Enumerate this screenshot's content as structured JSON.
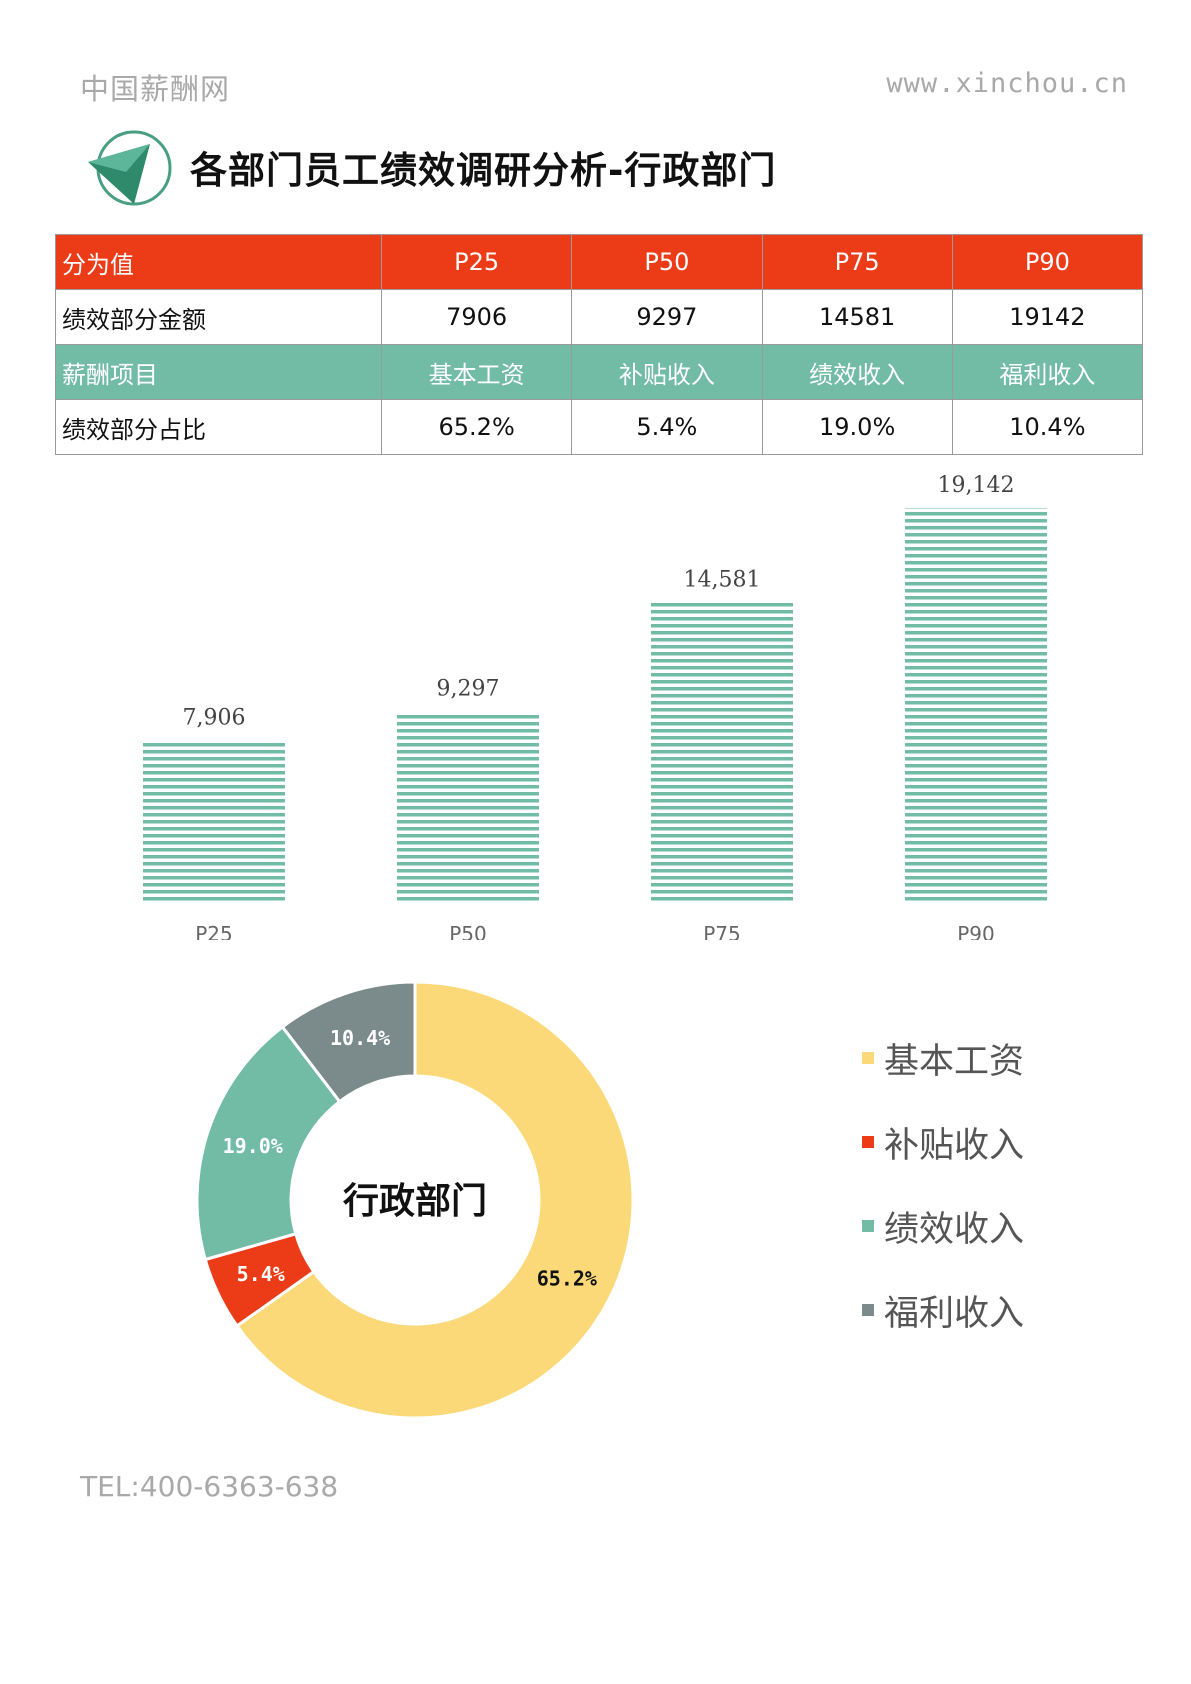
{
  "header": {
    "brand": "中国薪酬网",
    "site": "www.xinchou.cn",
    "title": "各部门员工绩效调研分析-行政部门"
  },
  "table": {
    "rows": [
      {
        "style": "red",
        "cells": [
          "分为值",
          "P25",
          "P50",
          "P75",
          "P90"
        ]
      },
      {
        "style": "plain",
        "cells": [
          "绩效部分金额",
          "7906",
          "9297",
          "14581",
          "19142"
        ]
      },
      {
        "style": "green",
        "cells": [
          "薪酬项目",
          "基本工资",
          "补贴收入",
          "绩效收入",
          "福利收入"
        ]
      },
      {
        "style": "plain",
        "cells": [
          "绩效部分占比",
          "65.2%",
          "5.4%",
          "19.0%",
          "10.4%"
        ]
      }
    ]
  },
  "chart_data": [
    {
      "type": "bar",
      "categories": [
        "P25",
        "P50",
        "P75",
        "P90"
      ],
      "values": [
        7906,
        9297,
        14581,
        19142
      ],
      "data_labels": [
        "7,906",
        "9,297",
        "14,581",
        "19,142"
      ],
      "color": "#72bba4",
      "fill_pattern": "horizontal-stripes",
      "title": "",
      "xlabel": "",
      "ylabel": "",
      "ylim": [
        0,
        19142
      ],
      "grid": false
    },
    {
      "type": "pie",
      "variant": "donut",
      "center_label": "行政部门",
      "categories": [
        "基本工资",
        "补贴收入",
        "绩效收入",
        "福利收入"
      ],
      "values": [
        65.2,
        5.4,
        19.0,
        10.4
      ],
      "data_labels": [
        "65.2%",
        "5.4%",
        "19.0%",
        "10.4%"
      ],
      "colors": [
        "#fbd978",
        "#ec3b17",
        "#72bba4",
        "#7b8a8b"
      ],
      "label_colors": [
        "#111111",
        "#ffffff",
        "#ffffff",
        "#ffffff"
      ],
      "legend_position": "right"
    }
  ],
  "footer": {
    "tel": "TEL:400-6363-638"
  },
  "colors": {
    "accent_red": "#ec3b17",
    "accent_green": "#72bba4",
    "muted_text": "#a9a9a9"
  }
}
